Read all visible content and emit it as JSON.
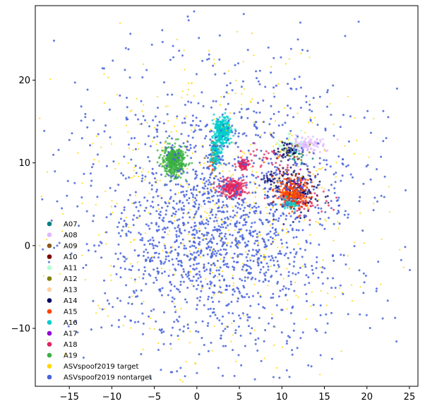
{
  "chart_data": {
    "type": "scatter",
    "title": "",
    "xlabel": "",
    "ylabel": "",
    "xlim": [
      -19,
      26
    ],
    "ylim": [
      -17,
      29
    ],
    "xticks": [
      -15,
      -10,
      -5,
      0,
      5,
      10,
      15,
      20,
      25
    ],
    "yticks": [
      -10,
      0,
      10,
      20
    ],
    "xtick_labels": [
      "−15",
      "−10",
      "−5",
      "0",
      "5",
      "10",
      "15",
      "20",
      "25"
    ],
    "ytick_labels": [
      "−10",
      "0",
      "10",
      "20"
    ],
    "grid": false,
    "legend_position": "lower-left",
    "series": [
      {
        "name": "A07",
        "color": "#008080",
        "clusters": [
          {
            "cx": 12.0,
            "cy": 11.0,
            "sx": 1.0,
            "sy": 0.6,
            "n": 25
          }
        ]
      },
      {
        "name": "A08",
        "color": "#e0b8ff",
        "clusters": [
          {
            "cx": 13.0,
            "cy": 12.2,
            "sx": 1.0,
            "sy": 0.5,
            "n": 110
          }
        ]
      },
      {
        "name": "A09",
        "color": "#8b5a1a",
        "clusters": [
          {
            "cx": 2.1,
            "cy": 11.0,
            "sx": 0.3,
            "sy": 1.0,
            "n": 30
          }
        ]
      },
      {
        "name": "A10",
        "color": "#800000",
        "clusters": [
          {
            "cx": 11.5,
            "cy": 8.5,
            "sx": 1.0,
            "sy": 1.0,
            "n": 15
          }
        ]
      },
      {
        "name": "A11",
        "color": "#b0ffd0",
        "clusters": [
          {
            "cx": 10.8,
            "cy": 12.3,
            "sx": 0.8,
            "sy": 0.6,
            "n": 30
          }
        ]
      },
      {
        "name": "A12",
        "color": "#808000",
        "clusters": [
          {
            "cx": 11.5,
            "cy": 11.5,
            "sx": 1.0,
            "sy": 0.6,
            "n": 20
          }
        ]
      },
      {
        "name": "A13",
        "color": "#ffd0a0",
        "clusters": [
          {
            "cx": 11.0,
            "cy": 8.0,
            "sx": 1.5,
            "sy": 1.2,
            "n": 20
          }
        ]
      },
      {
        "name": "A14",
        "color": "#000066",
        "clusters": [
          {
            "cx": 11.5,
            "cy": 6.5,
            "sx": 1.3,
            "sy": 1.4,
            "n": 200
          },
          {
            "cx": 10.5,
            "cy": 11.5,
            "sx": 0.6,
            "sy": 0.6,
            "n": 40
          },
          {
            "cx": 8.5,
            "cy": 8.0,
            "sx": 0.4,
            "sy": 0.3,
            "n": 20
          }
        ]
      },
      {
        "name": "A15",
        "color": "#ff4500",
        "clusters": [
          {
            "cx": 11.3,
            "cy": 6.3,
            "sx": 1.0,
            "sy": 1.0,
            "n": 260
          },
          {
            "cx": 2.0,
            "cy": 10.5,
            "sx": 0.3,
            "sy": 0.6,
            "n": 25
          }
        ]
      },
      {
        "name": "A16",
        "color": "#00cccc",
        "clusters": [
          {
            "cx": 3.0,
            "cy": 13.8,
            "sx": 0.45,
            "sy": 0.9,
            "n": 330
          },
          {
            "cx": 2.2,
            "cy": 11.2,
            "sx": 0.3,
            "sy": 0.9,
            "n": 120
          },
          {
            "cx": 11.0,
            "cy": 5.0,
            "sx": 0.6,
            "sy": 0.3,
            "n": 40
          }
        ]
      },
      {
        "name": "A17",
        "color": "#9400d3",
        "clusters": [
          {
            "cx": 11.0,
            "cy": 7.5,
            "sx": 1.0,
            "sy": 1.0,
            "n": 10
          }
        ]
      },
      {
        "name": "A18",
        "color": "#e0245e",
        "clusters": [
          {
            "cx": 4.2,
            "cy": 7.0,
            "sx": 0.8,
            "sy": 0.55,
            "n": 230
          },
          {
            "cx": 5.5,
            "cy": 9.8,
            "sx": 0.4,
            "sy": 0.35,
            "n": 80
          },
          {
            "cx": 8.0,
            "cy": 10.5,
            "sx": 1.4,
            "sy": 0.8,
            "n": 35
          },
          {
            "cx": 12.5,
            "cy": 5.0,
            "sx": 2.0,
            "sy": 1.0,
            "n": 35
          }
        ]
      },
      {
        "name": "A19",
        "color": "#3cb043",
        "clusters": [
          {
            "cx": -2.7,
            "cy": 10.2,
            "sx": 0.65,
            "sy": 0.9,
            "n": 460
          }
        ]
      },
      {
        "name": "ASVspoof2019 target",
        "color": "#ffd700",
        "clusters": [
          {
            "cx": 3.0,
            "cy": 4.0,
            "sx": 9.0,
            "sy": 9.5,
            "n": 520
          }
        ]
      },
      {
        "name": "ASVspoof2019 nontarget",
        "color": "#4763d9",
        "clusters": [
          {
            "cx": 3.0,
            "cy": 4.0,
            "sx": 9.0,
            "sy": 9.5,
            "n": 1350
          },
          {
            "cx": 1.5,
            "cy": 1.0,
            "sx": 5.0,
            "sy": 5.0,
            "n": 500
          }
        ]
      }
    ]
  }
}
